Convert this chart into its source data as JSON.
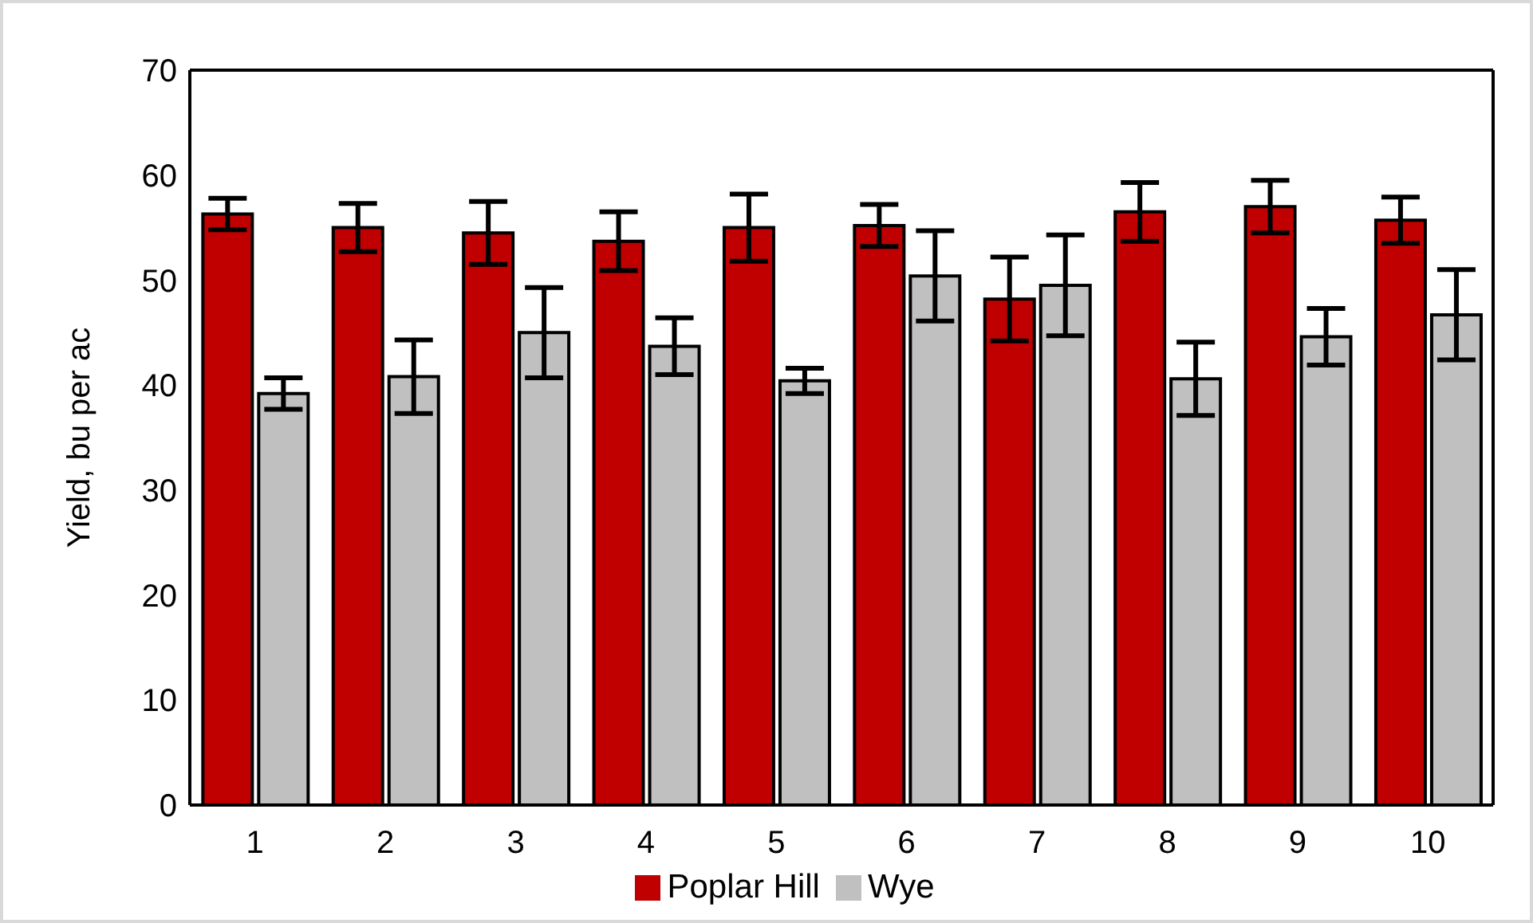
{
  "chart_data": {
    "type": "bar",
    "ylabel": "Yield, bu per ac",
    "categories": [
      "1",
      "2",
      "3",
      "4",
      "5",
      "6",
      "7",
      "8",
      "9",
      "10"
    ],
    "series": [
      {
        "name": "Poplar Hill",
        "color": "#c00000",
        "values": [
          56.3,
          55,
          54.5,
          53.7,
          55,
          55.2,
          48.2,
          56.5,
          57,
          55.7
        ],
        "errors": [
          1.5,
          2.3,
          3,
          2.8,
          3.2,
          2,
          4,
          2.8,
          2.5,
          2.2
        ]
      },
      {
        "name": "Wye",
        "color": "#c0c0c0",
        "values": [
          39.2,
          40.8,
          45,
          43.7,
          40.4,
          50.4,
          49.5,
          40.6,
          44.6,
          46.7
        ],
        "errors": [
          1.5,
          3.5,
          4.3,
          2.7,
          1.2,
          4.3,
          4.8,
          3.5,
          2.7,
          4.3
        ]
      }
    ],
    "ylim": [
      0,
      70
    ],
    "yticks": [
      0,
      10,
      20,
      30,
      40,
      50,
      60,
      70
    ],
    "grid": false,
    "legend": "bottom"
  }
}
